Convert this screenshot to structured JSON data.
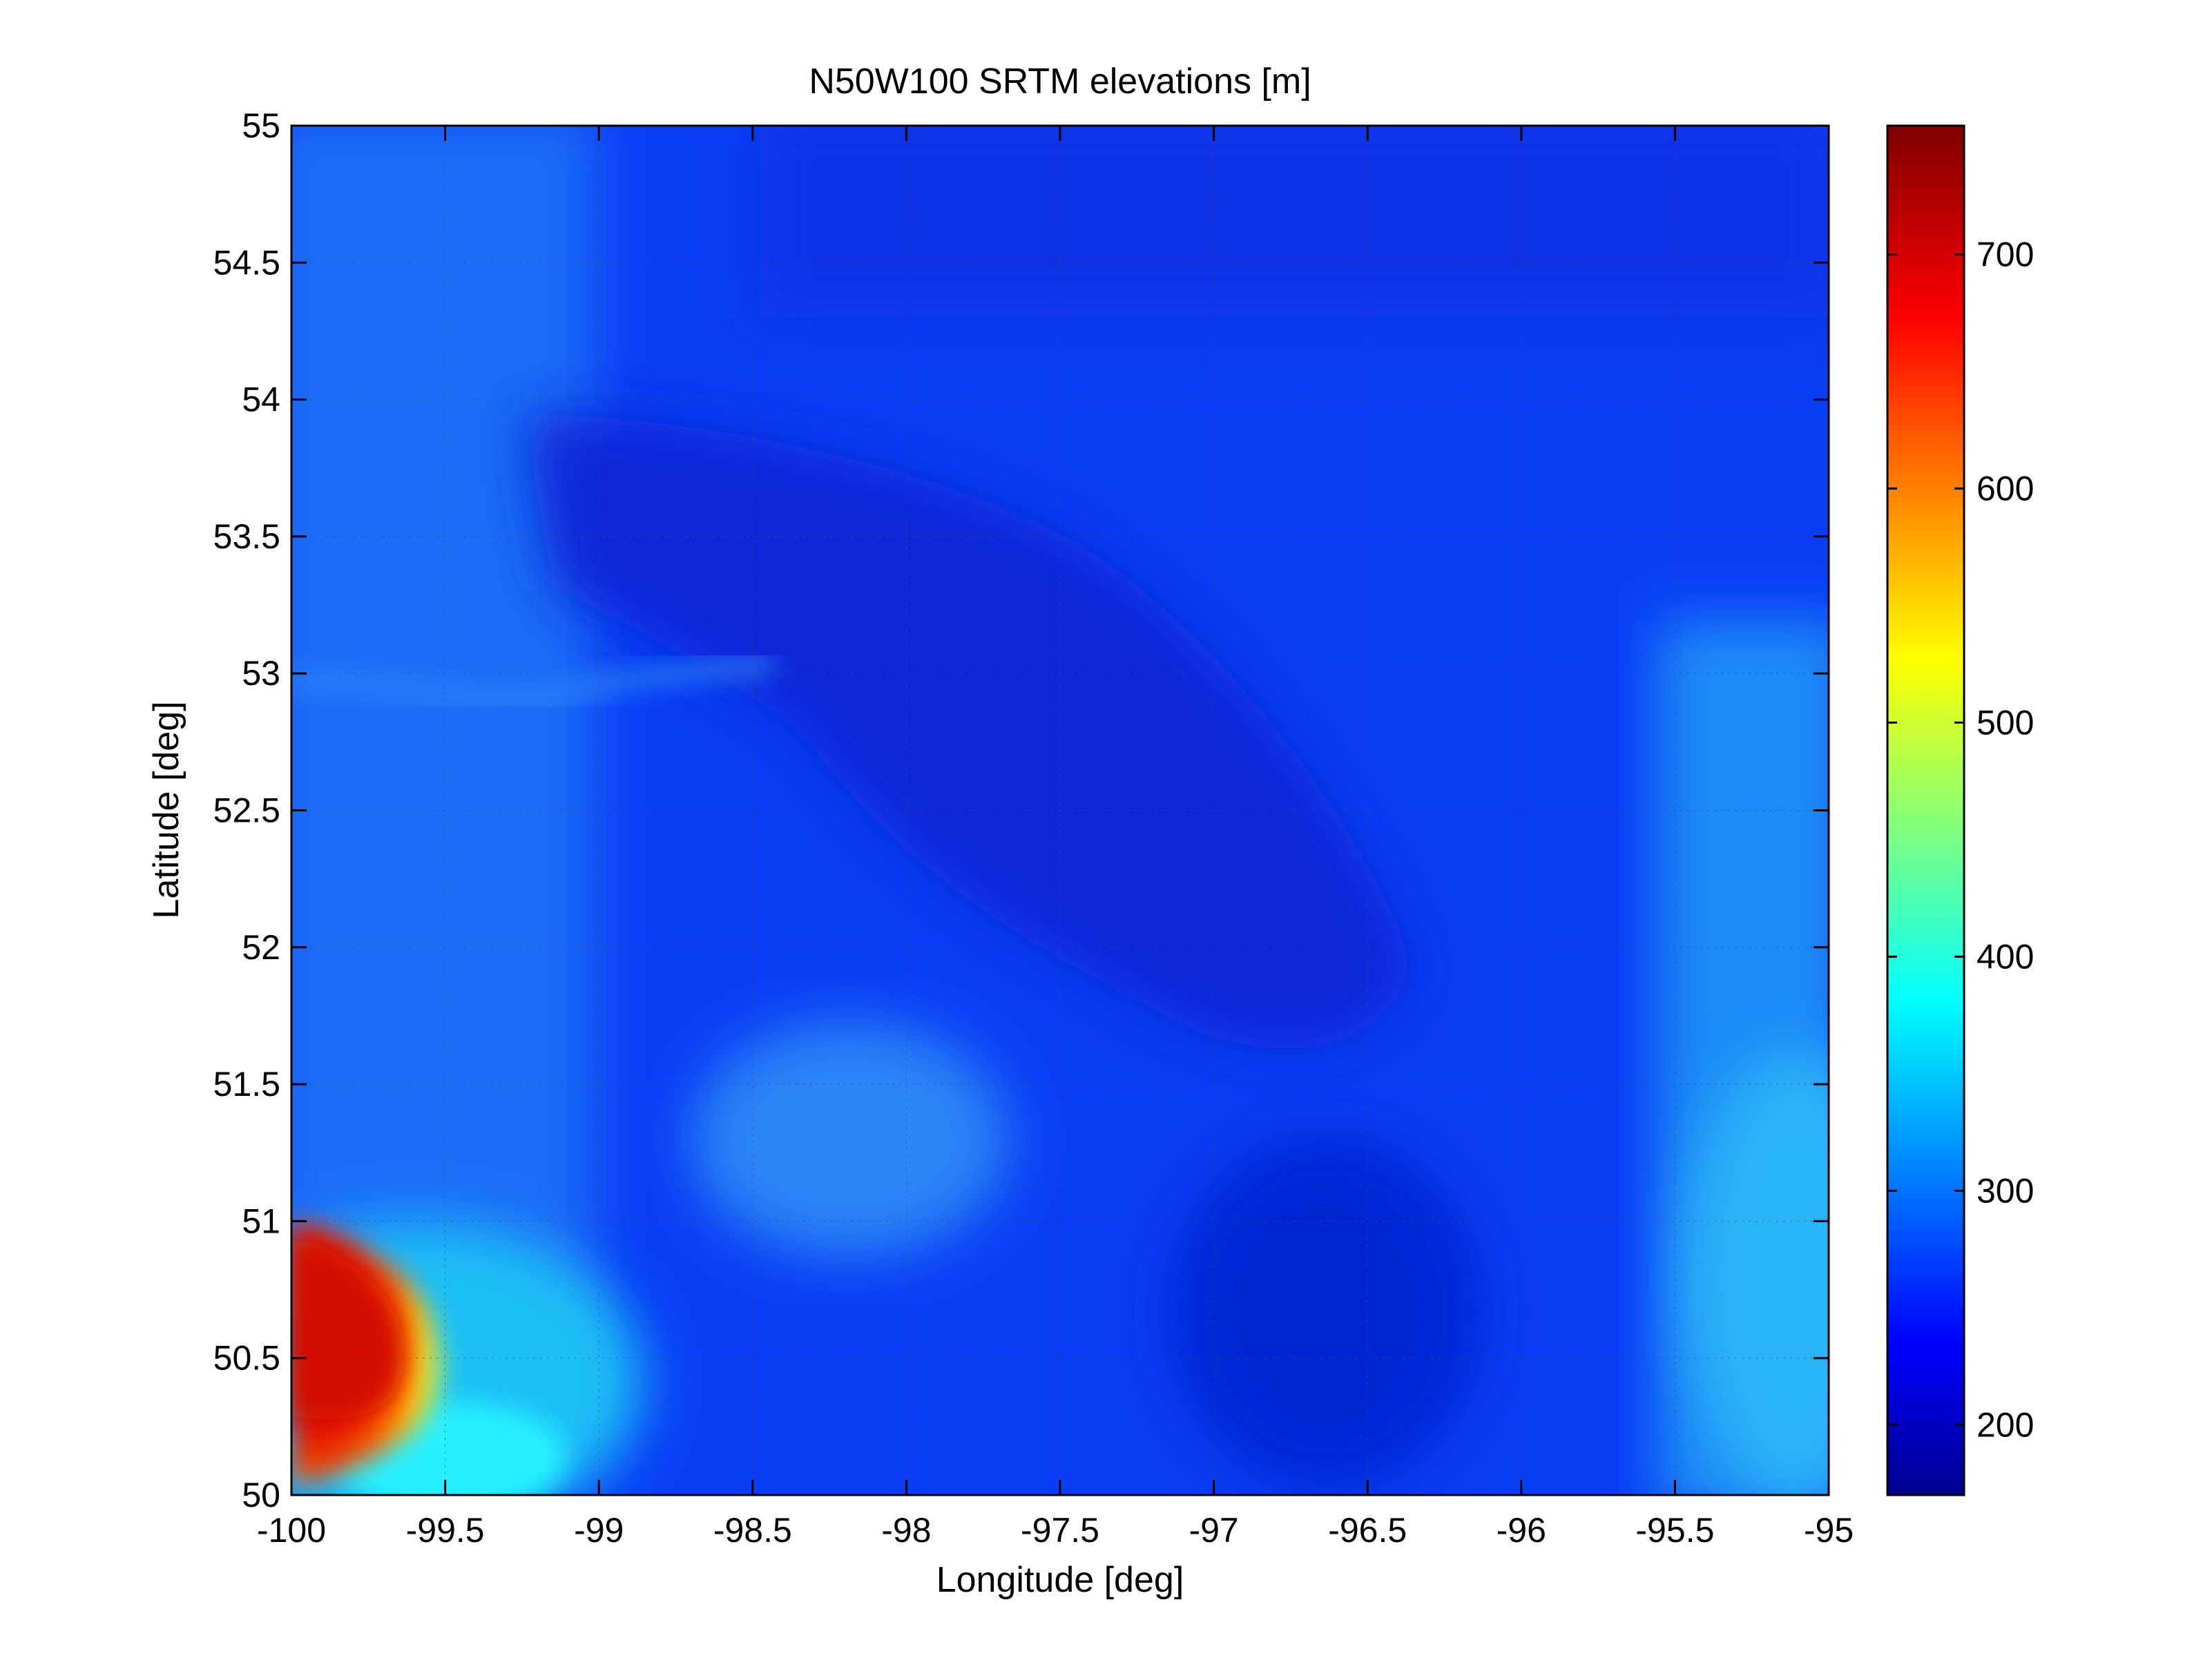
{
  "chart_data": {
    "type": "heatmap",
    "title": "N50W100 SRTM elevations [m]",
    "xlabel": "Longitude [deg]",
    "ylabel": "Latitude [deg]",
    "xlim": [
      -100,
      -95
    ],
    "ylim": [
      50,
      55
    ],
    "xticks": [
      -100,
      -99.5,
      -99,
      -98.5,
      -98,
      -97.5,
      -97,
      -96.5,
      -96,
      -95.5,
      -95
    ],
    "xtick_labels": [
      "-100",
      "-99.5",
      "-99",
      "-98.5",
      "-98",
      "-97.5",
      "-97",
      "-96.5",
      "-96",
      "-95.5",
      "-95"
    ],
    "yticks": [
      50,
      50.5,
      51,
      51.5,
      52,
      52.5,
      53,
      53.5,
      54,
      54.5,
      55
    ],
    "ytick_labels": [
      "50",
      "50.5",
      "51",
      "51.5",
      "52",
      "52.5",
      "53",
      "53.5",
      "54",
      "54.5",
      "55"
    ],
    "grid": true,
    "colormap": "jet",
    "colorbar": {
      "range": [
        170,
        755
      ],
      "ticks": [
        200,
        300,
        400,
        500,
        600,
        700
      ],
      "tick_labels": [
        "200",
        "300",
        "400",
        "500",
        "600",
        "700"
      ],
      "placement": "right"
    },
    "features": [
      {
        "description": "escarpment highland",
        "lon": [
          -100,
          -99.5
        ],
        "lat": [
          50.0,
          51.0
        ],
        "elevation_range": [
          350,
          720
        ]
      },
      {
        "description": "lowland basin",
        "lon": [
          -98.7,
          -97.3
        ],
        "lat": [
          51.9,
          53.8
        ],
        "elevation_range": [
          210,
          230
        ]
      },
      {
        "description": "eastern rise",
        "lon": [
          -95.6,
          -95
        ],
        "lat": [
          50.0,
          51.5
        ],
        "elevation_range": [
          300,
          380
        ]
      }
    ]
  }
}
